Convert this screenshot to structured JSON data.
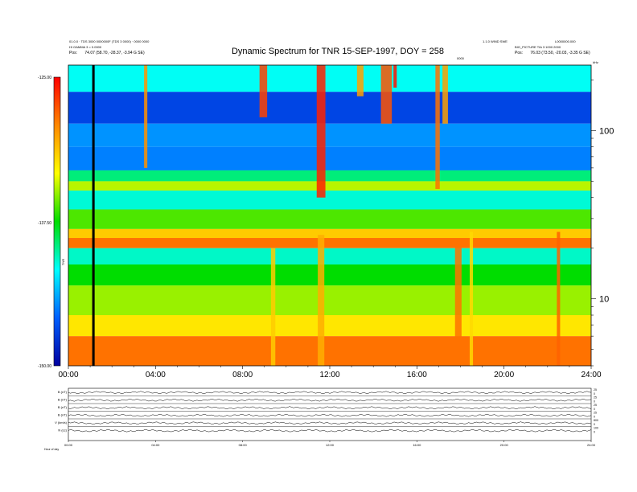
{
  "header": {
    "left_line1": "01.0.0 · TDS 3000 0000000F (TDS 3 0000) · 0000 0000",
    "left_line2": "HI GAMMA 3 = 0.0000",
    "left_line3_label": "Pos:",
    "left_line3_value": "74.07 (58.70, -28.37, -3.94 G SE)",
    "right_line1": "1.1.0 WIND SWE",
    "right_line2": "L0000000.000",
    "right_line3": "BIG_PICTURE TIA 3 1000 2000",
    "right_line4_label": "Pos:",
    "right_line4_value": "76.03 (73.50, -20.03, -3.35 G SE)",
    "center_tag": "0000"
  },
  "chart_data": {
    "type": "heatmap",
    "title": "Dynamic Spectrum for TNR 15-SEP-1997, DOY = 258",
    "xlabel": "",
    "ylabel": "",
    "x_ticks": [
      "00:00",
      "04:00",
      "08:00",
      "12:00",
      "16:00",
      "20:00",
      "24:00"
    ],
    "x_range_hours": [
      0,
      24
    ],
    "y_scale": "log",
    "y_range_khz": [
      4,
      245
    ],
    "y_ticks": [
      {
        "value": 100,
        "label": "100"
      },
      {
        "value": 10,
        "label": "10"
      }
    ],
    "y_unit_label": "kHz",
    "colorbar": {
      "label": "TNR",
      "max_label": "-125.00",
      "mid_label": "-137.50",
      "min_label": "-150.00",
      "colors": [
        "#0000a0",
        "#0060ff",
        "#00ffff",
        "#00dd00",
        "#ffff00",
        "#ff8800",
        "#ff0000"
      ]
    },
    "marker_line_hour": 1.15,
    "bands": [
      {
        "from_khz": 245,
        "to_khz": 170,
        "level": 0.34
      },
      {
        "from_khz": 170,
        "to_khz": 110,
        "level": 0.12
      },
      {
        "from_khz": 110,
        "to_khz": 80,
        "level": 0.22
      },
      {
        "from_khz": 80,
        "to_khz": 58,
        "level": 0.2
      },
      {
        "from_khz": 58,
        "to_khz": 50,
        "level": 0.42
      },
      {
        "from_khz": 50,
        "to_khz": 44,
        "level": 0.62
      },
      {
        "from_khz": 44,
        "to_khz": 34,
        "level": 0.36
      },
      {
        "from_khz": 34,
        "to_khz": 26,
        "level": 0.55
      },
      {
        "from_khz": 26,
        "to_khz": 23,
        "level": 0.74
      },
      {
        "from_khz": 23,
        "to_khz": 20,
        "level": 0.86
      },
      {
        "from_khz": 20,
        "to_khz": 16,
        "level": 0.37
      },
      {
        "from_khz": 16,
        "to_khz": 12,
        "level": 0.5
      },
      {
        "from_khz": 12,
        "to_khz": 8,
        "level": 0.6
      },
      {
        "from_khz": 8,
        "to_khz": 6,
        "level": 0.7
      },
      {
        "from_khz": 6,
        "to_khz": 4,
        "level": 0.86
      }
    ],
    "bursts": [
      {
        "hour": 3.55,
        "width_h": 0.15,
        "from_khz": 245,
        "to_khz": 60,
        "level": 0.82
      },
      {
        "hour": 8.95,
        "width_h": 0.35,
        "from_khz": 245,
        "to_khz": 120,
        "level": 0.92
      },
      {
        "hour": 9.4,
        "width_h": 0.2,
        "from_khz": 20,
        "to_khz": 4,
        "level": 0.74
      },
      {
        "hour": 11.6,
        "width_h": 0.4,
        "from_khz": 245,
        "to_khz": 40,
        "level": 0.96
      },
      {
        "hour": 11.6,
        "width_h": 0.3,
        "from_khz": 24,
        "to_khz": 4,
        "level": 0.78
      },
      {
        "hour": 13.4,
        "width_h": 0.3,
        "from_khz": 245,
        "to_khz": 160,
        "level": 0.8
      },
      {
        "hour": 14.6,
        "width_h": 0.5,
        "from_khz": 245,
        "to_khz": 110,
        "level": 0.9
      },
      {
        "hour": 15.0,
        "width_h": 0.15,
        "from_khz": 245,
        "to_khz": 180,
        "level": 0.98
      },
      {
        "hour": 16.95,
        "width_h": 0.2,
        "from_khz": 245,
        "to_khz": 45,
        "level": 0.86
      },
      {
        "hour": 17.3,
        "width_h": 0.25,
        "from_khz": 245,
        "to_khz": 110,
        "level": 0.8
      },
      {
        "hour": 17.9,
        "width_h": 0.3,
        "from_khz": 22,
        "to_khz": 4,
        "level": 0.86
      },
      {
        "hour": 18.5,
        "width_h": 0.15,
        "from_khz": 25,
        "to_khz": 4,
        "level": 0.72
      },
      {
        "hour": 22.5,
        "width_h": 0.15,
        "from_khz": 25,
        "to_khz": 4,
        "level": 0.88
      }
    ]
  },
  "panels": {
    "labels": [
      "B (nT)",
      "B (nT)",
      "B (nT)",
      "B (nT)",
      "V (km/s)",
      "N (cc)"
    ],
    "right_labels": [
      "25",
      "0",
      "25",
      "0",
      "25",
      "0",
      "25",
      "0",
      "800",
      "0",
      "100",
      "0"
    ],
    "x_ticks": [
      "00:00",
      "04:00",
      "08:00",
      "12:00",
      "16:00",
      "20:00",
      "24:00"
    ],
    "footer_label": "Hour of day"
  }
}
